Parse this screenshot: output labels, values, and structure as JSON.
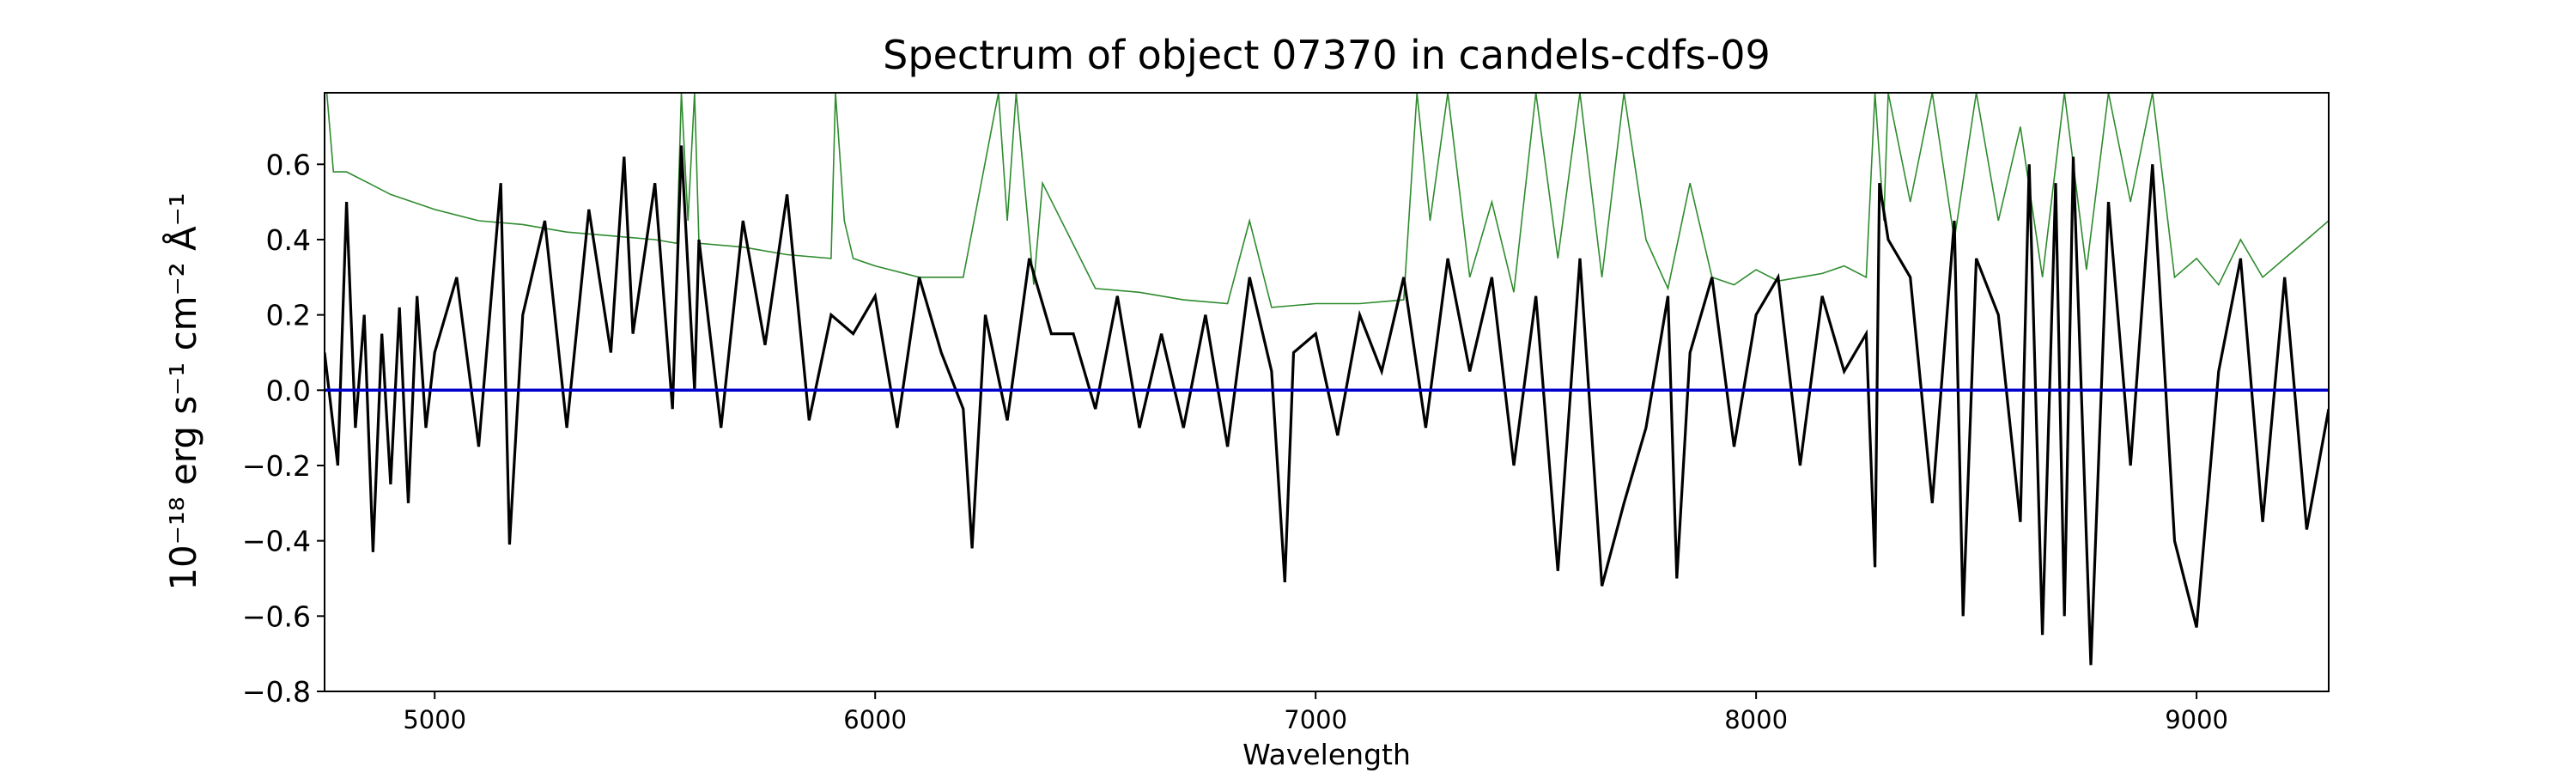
{
  "chart_data": {
    "type": "line",
    "title": "Spectrum of object 07370 in candels-cdfs-09",
    "xlabel": "Wavelength",
    "ylabel": "10⁻¹⁸ erg s⁻¹ cm⁻² Å⁻¹",
    "xlim": [
      4750,
      9300
    ],
    "ylim": [
      -0.8,
      0.79
    ],
    "xticks": [
      5000,
      6000,
      7000,
      8000,
      9000
    ],
    "xtick_labels": [
      "5000",
      "6000",
      "7000",
      "8000",
      "9000"
    ],
    "yticks": [
      -0.8,
      -0.6,
      -0.4,
      -0.2,
      0.0,
      0.2,
      0.4,
      0.6
    ],
    "ytick_labels": [
      "−0.8",
      "−0.6",
      "−0.4",
      "−0.2",
      "0.0",
      "0.2",
      "0.4",
      "0.6"
    ],
    "grid": false,
    "legend": "none",
    "series": [
      {
        "color": "#000000",
        "style": "noisy flux line",
        "x": [
          4750,
          4780,
          4800,
          4820,
          4840,
          4860,
          4880,
          4900,
          4920,
          4940,
          4960,
          4980,
          5000,
          5050,
          5100,
          5150,
          5170,
          5200,
          5250,
          5300,
          5350,
          5400,
          5430,
          5450,
          5500,
          5540,
          5560,
          5590,
          5600,
          5650,
          5700,
          5750,
          5800,
          5850,
          5900,
          5950,
          6000,
          6050,
          6100,
          6150,
          6200,
          6220,
          6250,
          6300,
          6350,
          6400,
          6450,
          6500,
          6550,
          6600,
          6650,
          6700,
          6750,
          6800,
          6850,
          6900,
          6930,
          6950,
          7000,
          7050,
          7100,
          7150,
          7200,
          7250,
          7300,
          7350,
          7400,
          7450,
          7500,
          7550,
          7600,
          7650,
          7700,
          7750,
          7800,
          7820,
          7850,
          7900,
          7950,
          8000,
          8050,
          8100,
          8150,
          8200,
          8250,
          8270,
          8280,
          8300,
          8350,
          8400,
          8450,
          8470,
          8500,
          8550,
          8600,
          8620,
          8650,
          8680,
          8700,
          8720,
          8750,
          8760,
          8800,
          8850,
          8900,
          8950,
          9000,
          9050,
          9100,
          9150,
          9200,
          9250,
          9300
        ],
        "y": [
          0.1,
          -0.2,
          0.5,
          -0.1,
          0.2,
          -0.43,
          0.15,
          -0.25,
          0.22,
          -0.3,
          0.25,
          -0.1,
          0.1,
          0.3,
          -0.15,
          0.55,
          -0.41,
          0.2,
          0.45,
          -0.1,
          0.48,
          0.1,
          0.62,
          0.15,
          0.55,
          -0.05,
          0.65,
          0.0,
          0.4,
          -0.1,
          0.45,
          0.12,
          0.52,
          -0.08,
          0.2,
          0.15,
          0.25,
          -0.1,
          0.3,
          0.1,
          -0.05,
          -0.42,
          0.2,
          -0.08,
          0.35,
          0.15,
          0.15,
          -0.05,
          0.25,
          -0.1,
          0.15,
          -0.1,
          0.2,
          -0.15,
          0.3,
          0.05,
          -0.51,
          0.1,
          0.15,
          -0.12,
          0.2,
          0.05,
          0.3,
          -0.1,
          0.35,
          0.05,
          0.3,
          -0.2,
          0.25,
          -0.48,
          0.35,
          -0.52,
          -0.3,
          -0.1,
          0.25,
          -0.5,
          0.1,
          0.3,
          -0.15,
          0.2,
          0.3,
          -0.2,
          0.25,
          0.05,
          0.15,
          -0.47,
          0.55,
          0.4,
          0.3,
          -0.3,
          0.45,
          -0.6,
          0.35,
          0.2,
          -0.35,
          0.6,
          -0.65,
          0.55,
          -0.6,
          0.62,
          -0.4,
          -0.73,
          0.5,
          -0.2,
          0.6,
          -0.4,
          -0.63,
          0.05,
          0.35,
          -0.35,
          0.3,
          -0.37,
          -0.05
        ]
      },
      {
        "color": "#2e8b2e",
        "style": "thin error line",
        "x": [
          4750,
          4755,
          4770,
          4800,
          4850,
          4900,
          4950,
          5000,
          5100,
          5200,
          5300,
          5400,
          5500,
          5550,
          5560,
          5575,
          5590,
          5600,
          5700,
          5800,
          5900,
          5910,
          5930,
          5950,
          6000,
          6100,
          6200,
          6280,
          6300,
          6320,
          6360,
          6380,
          6500,
          6600,
          6700,
          6800,
          6850,
          6900,
          7000,
          7100,
          7200,
          7230,
          7260,
          7300,
          7350,
          7400,
          7450,
          7500,
          7550,
          7600,
          7650,
          7700,
          7750,
          7800,
          7850,
          7900,
          7950,
          8000,
          8050,
          8100,
          8150,
          8200,
          8250,
          8270,
          8290,
          8300,
          8350,
          8400,
          8450,
          8500,
          8550,
          8600,
          8650,
          8700,
          8750,
          8800,
          8850,
          8900,
          8950,
          9000,
          9050,
          9100,
          9150,
          9200,
          9250,
          9300
        ],
        "y": [
          0.79,
          0.79,
          0.58,
          0.58,
          0.55,
          0.52,
          0.5,
          0.48,
          0.45,
          0.44,
          0.42,
          0.41,
          0.4,
          0.39,
          0.79,
          0.45,
          0.79,
          0.39,
          0.38,
          0.36,
          0.35,
          0.79,
          0.45,
          0.35,
          0.33,
          0.3,
          0.3,
          0.79,
          0.45,
          0.79,
          0.28,
          0.55,
          0.27,
          0.26,
          0.24,
          0.23,
          0.45,
          0.22,
          0.23,
          0.23,
          0.24,
          0.79,
          0.45,
          0.79,
          0.3,
          0.5,
          0.26,
          0.79,
          0.35,
          0.79,
          0.3,
          0.79,
          0.4,
          0.27,
          0.55,
          0.3,
          0.28,
          0.32,
          0.29,
          0.3,
          0.31,
          0.33,
          0.3,
          0.79,
          0.45,
          0.79,
          0.5,
          0.79,
          0.4,
          0.79,
          0.45,
          0.7,
          0.3,
          0.79,
          0.32,
          0.79,
          0.5,
          0.79,
          0.3,
          0.35,
          0.28,
          0.4,
          0.3,
          0.35,
          0.4,
          0.45
        ]
      },
      {
        "color": "#0000cd",
        "style": "zero line",
        "x": [
          4750,
          9300
        ],
        "y": [
          0.0,
          0.0
        ]
      }
    ]
  }
}
